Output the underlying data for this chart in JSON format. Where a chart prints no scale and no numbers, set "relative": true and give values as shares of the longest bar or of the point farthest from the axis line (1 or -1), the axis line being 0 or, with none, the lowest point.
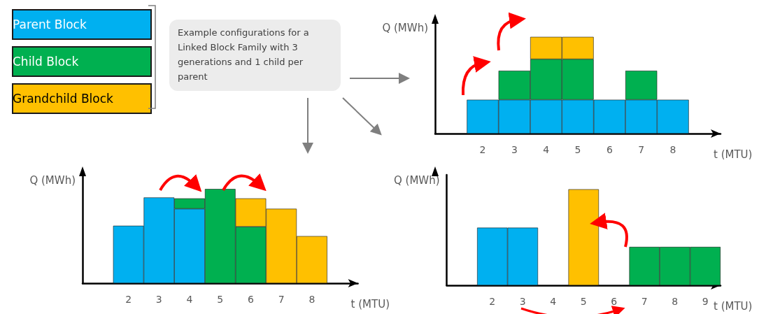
{
  "chart_data": [
    {
      "type": "bar",
      "stacked": true,
      "relative": true,
      "ylabel": "Q (MWh)",
      "xlabel": "t (MTU)",
      "legend": "left",
      "grid": false,
      "annotations": [
        "Example configurations for a Linked Block Family with 3 generations and 1 child per parent"
      ],
      "categories": [
        null,
        "2",
        "3",
        "4",
        "5",
        "6",
        "7",
        "8",
        null
      ],
      "series": [
        {
          "name": "Parent Block",
          "color": "#00b0f0",
          "values": [
            null,
            0.35,
            0.35,
            0.35,
            0.35,
            0.35,
            0.35,
            0.35,
            null
          ]
        },
        {
          "name": "Child Block",
          "color": "#00b050",
          "values": [
            null,
            null,
            0.3,
            0.42,
            0.42,
            null,
            0.3,
            null,
            null
          ]
        },
        {
          "name": "Grandchild Block",
          "color": "#ffc000",
          "values": [
            null,
            null,
            null,
            0.23,
            0.23,
            null,
            null,
            null,
            null
          ]
        }
      ]
    },
    {
      "type": "bar",
      "stacked": true,
      "relative": true,
      "ylabel": "Q (MWh)",
      "xlabel": "t (MTU)",
      "grid": false,
      "categories": [
        null,
        "2",
        "3",
        "4",
        "5",
        "6",
        "7",
        "8",
        null
      ],
      "series": [
        {
          "color": "#00b0f0",
          "values": [
            null,
            0.61,
            0.91,
            0.79,
            null,
            null,
            null,
            null,
            null
          ]
        },
        {
          "color": "#00b050",
          "values": [
            null,
            null,
            null,
            0.11,
            1.0,
            0.6,
            null,
            null,
            null
          ]
        },
        {
          "color": "#ffc000",
          "values": [
            null,
            null,
            null,
            null,
            null,
            0.3,
            0.79,
            0.5,
            null
          ]
        }
      ]
    },
    {
      "type": "bar",
      "stacked": true,
      "relative": true,
      "ylabel": "Q (MWh)",
      "xlabel": "t (MTU)",
      "grid": false,
      "categories": [
        null,
        "2",
        "3",
        "4",
        "5",
        "6",
        "7",
        "8",
        "9"
      ],
      "series": [
        {
          "color": "#00b0f0",
          "values": [
            null,
            0.6,
            0.6,
            null,
            null,
            null,
            null,
            null,
            null
          ]
        },
        {
          "color": "#00b050",
          "values": [
            null,
            null,
            null,
            null,
            null,
            null,
            0.4,
            0.4,
            0.4
          ]
        },
        {
          "color": "#ffc000",
          "values": [
            null,
            null,
            null,
            null,
            1.0,
            null,
            null,
            null,
            null
          ]
        }
      ]
    }
  ]
}
